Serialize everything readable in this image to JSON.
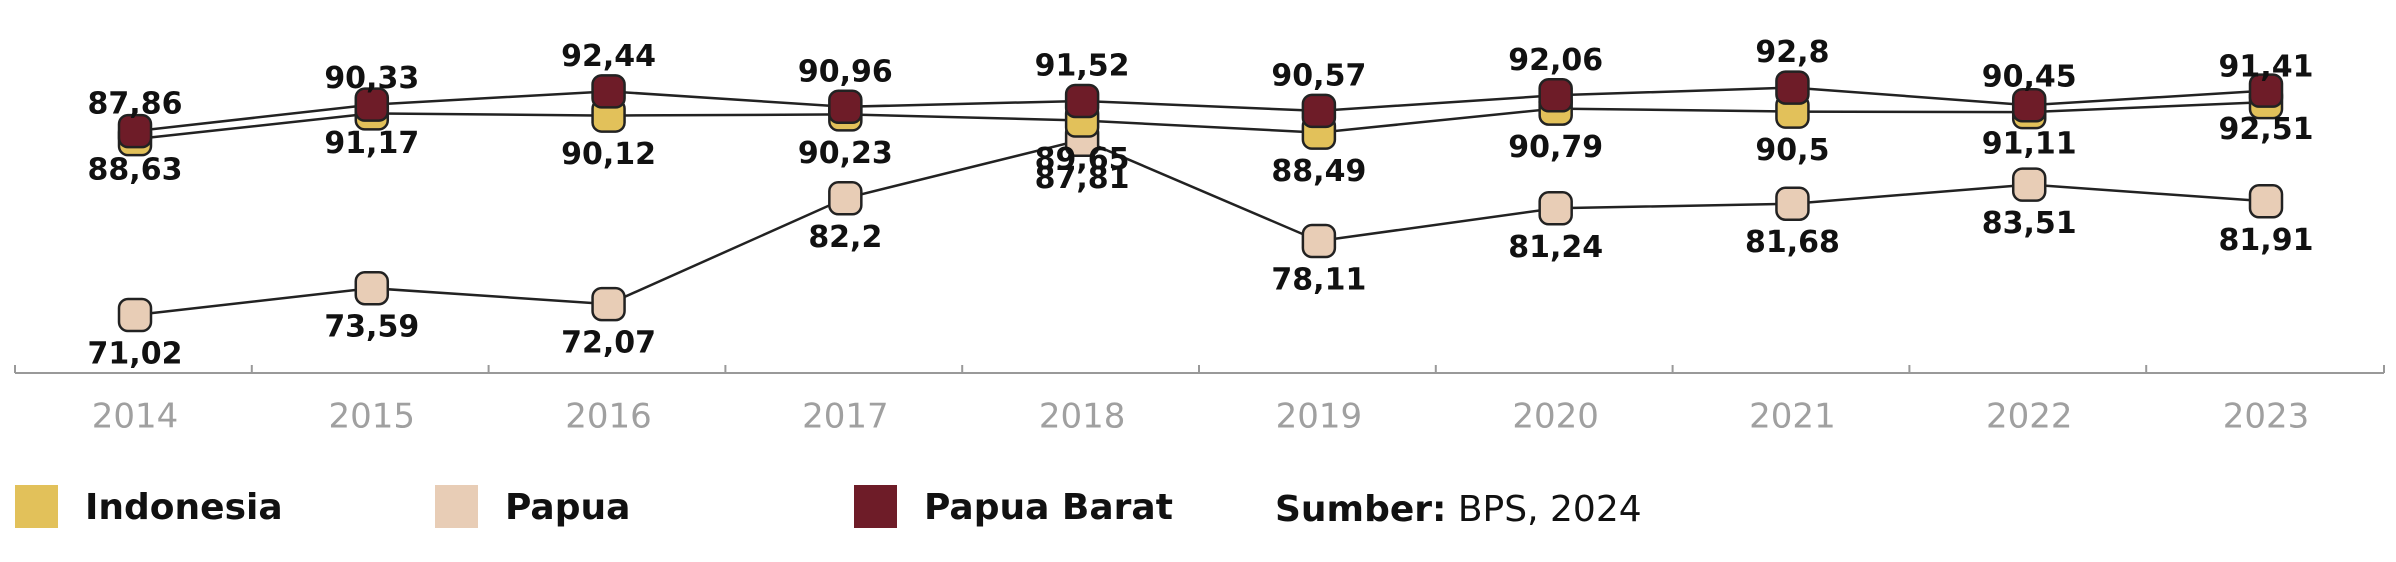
{
  "chart_data": {
    "type": "line",
    "categories": [
      "2014",
      "2015",
      "2016",
      "2017",
      "2018",
      "2019",
      "2020",
      "2021",
      "2022",
      "2023"
    ],
    "ylim": [
      65,
      95
    ],
    "series": [
      {
        "name": "Indonesia",
        "color": "#e2c15a",
        "values": [
          87.86,
          90.33,
          90.12,
          90.23,
          89.65,
          88.49,
          90.79,
          90.5,
          90.45,
          91.41
        ],
        "value_labels": [
          "87,86",
          "90,33",
          "90,12",
          "90,23",
          "89,65",
          "88,49",
          "90,79",
          "90,5",
          "90,45",
          "91,41"
        ]
      },
      {
        "name": "Papua",
        "color": "#e8cdb6",
        "values": [
          71.02,
          73.59,
          72.07,
          82.2,
          87.81,
          78.11,
          81.24,
          81.68,
          83.51,
          81.91
        ],
        "value_labels": [
          "71,02",
          "73,59",
          "72,07",
          "82,2",
          "87,81",
          "78,11",
          "81,24",
          "81,68",
          "83,51",
          "81,91"
        ]
      },
      {
        "name": "Papua Barat",
        "color": "#6e1c28",
        "values": [
          88.63,
          91.17,
          92.44,
          90.96,
          91.52,
          90.57,
          92.06,
          92.8,
          91.11,
          92.51
        ],
        "value_labels": [
          "88,63",
          "91,17",
          "92,44",
          "90,96",
          "91,52",
          "90,57",
          "92,06",
          "92,8",
          "91,11",
          "92,51"
        ]
      }
    ],
    "source_label": "Sumber:",
    "source": "BPS, 2024"
  }
}
